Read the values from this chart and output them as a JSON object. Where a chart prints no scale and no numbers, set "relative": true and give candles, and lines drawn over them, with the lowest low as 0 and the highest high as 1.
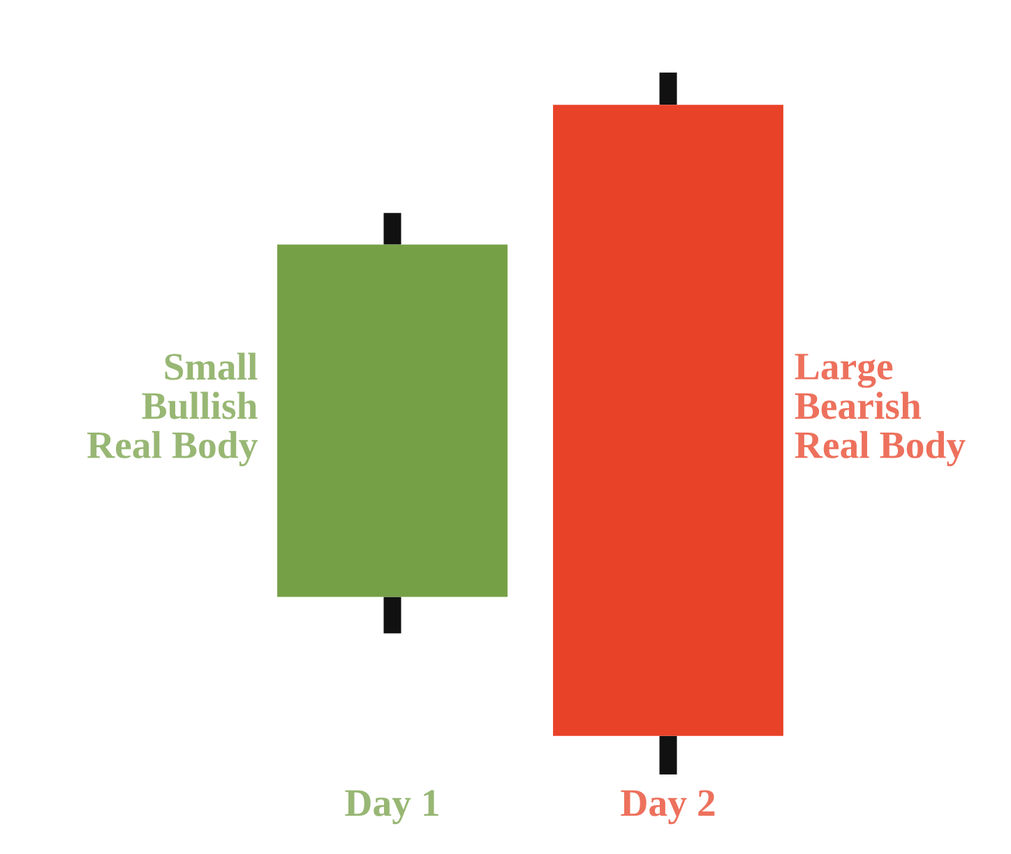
{
  "chart_data": {
    "type": "candlestick",
    "relative": true,
    "categories": [
      "Day 1",
      "Day 2"
    ],
    "ohlc": [
      [
        0.253,
        0.8,
        0.201,
        0.755
      ],
      [
        0.954,
        1,
        0,
        0.055
      ]
    ],
    "colors": [
      "#76a046",
      "#e84228"
    ],
    "annotations": [
      "Small\nBullish\nReal Body",
      "Large\nBearish\nReal Body"
    ]
  }
}
